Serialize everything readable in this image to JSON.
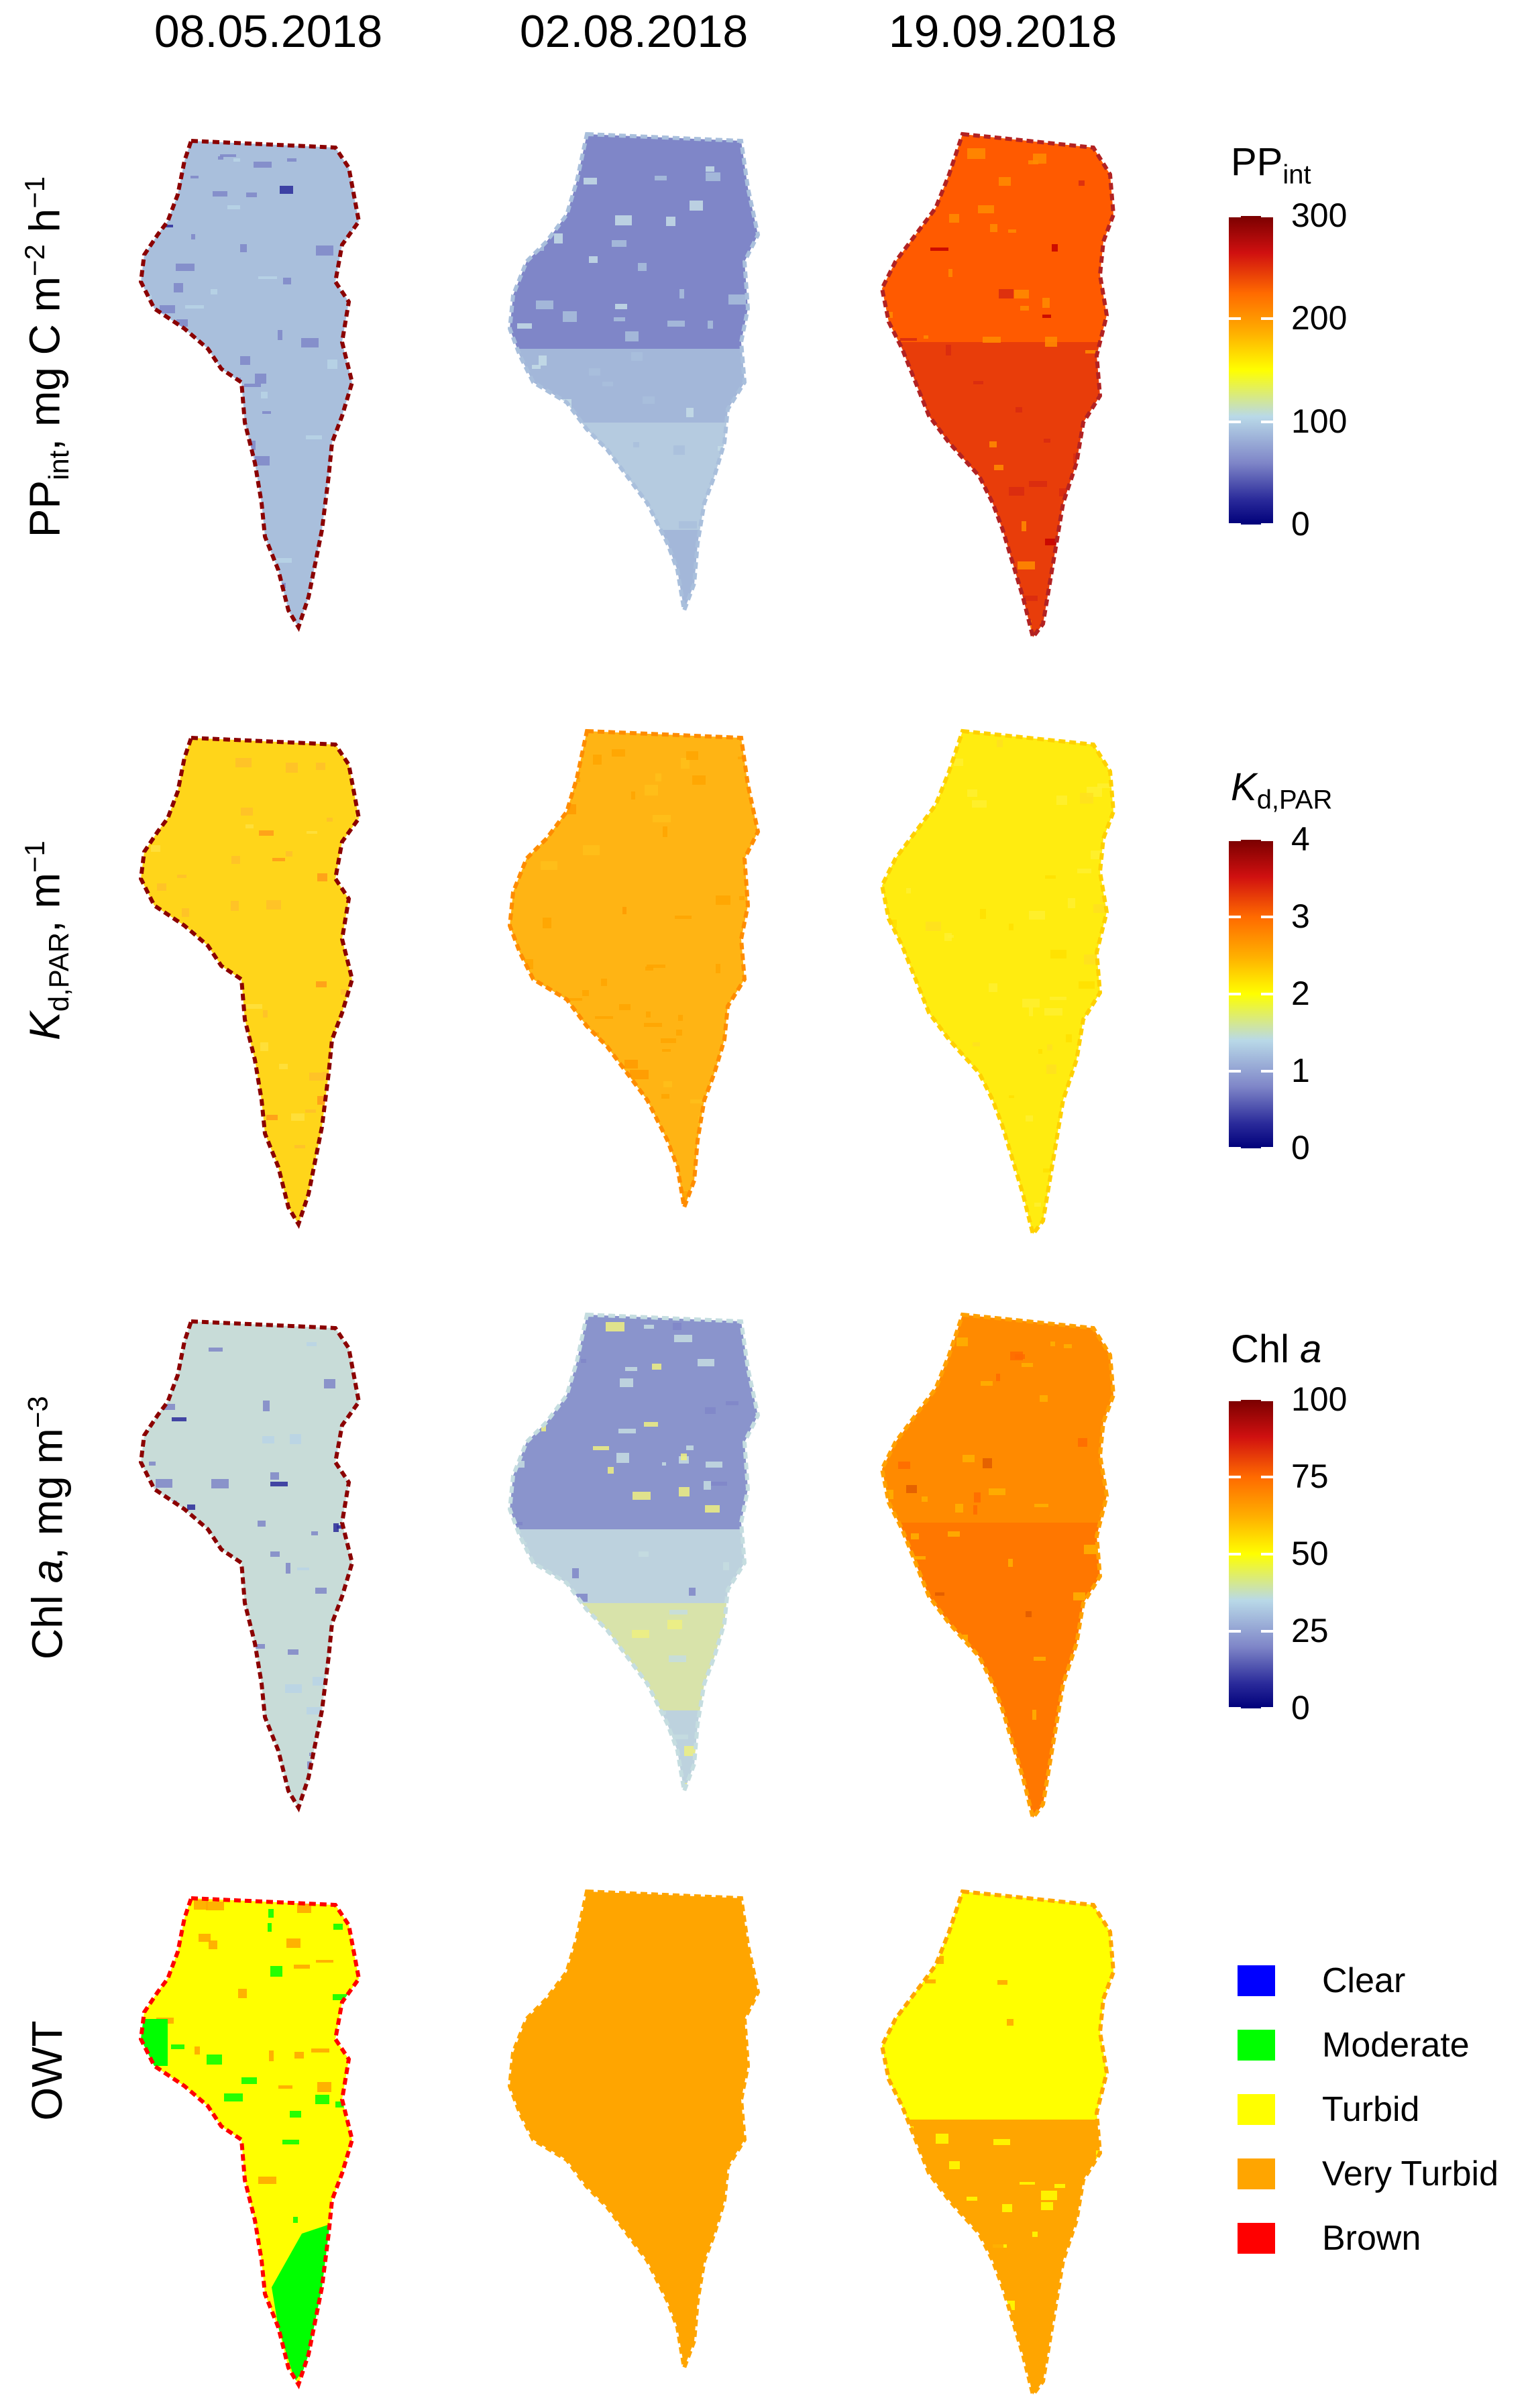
{
  "dates": [
    "08.05.2018",
    "02.08.2018",
    "19.09.2018"
  ],
  "rows": [
    {
      "id": "ppint",
      "label_main": "PP",
      "label_sub": "int",
      "label_rest": ", mg C m",
      "label_sup1": "−2",
      "label_mid": " h",
      "label_sup2": "−1",
      "colorbar": {
        "title_main": "PP",
        "title_sub": "int",
        "ticks": [
          "300",
          "200",
          "100",
          "0"
        ],
        "stops": [
          "#7a0000",
          "#d01010",
          "#ff6a00",
          "#ffb000",
          "#ffff00",
          "#b9d9e8",
          "#7f86c8",
          "#2a2a9a",
          "#00007a"
        ]
      },
      "maps": [
        {
          "base": "#a9bfdc",
          "patch": "#7f86c8",
          "patch2": "#b9d3e6",
          "edge": "#8b0000",
          "dark": "#2a2a9a"
        },
        {
          "base": "#7f86c8",
          "patch": "#a9bfdc",
          "patch2": "#c5dde6",
          "edge": "#a9bfdc",
          "dark": "#7f86c8"
        },
        {
          "base": "#ff5a00",
          "patch": "#ff8c00",
          "patch2": "#d82a10",
          "edge": "#b22222",
          "dark": "#c40000"
        }
      ]
    },
    {
      "id": "kd",
      "label_main": "K",
      "label_sub": "d,PAR",
      "label_rest": ", m",
      "label_sup1": "−1",
      "label_mid": "",
      "label_sup2": "",
      "colorbar": {
        "title_main": "K",
        "title_sub": "d,PAR",
        "ticks": [
          "4",
          "3",
          "2",
          "1",
          "0"
        ],
        "stops": [
          "#7a0000",
          "#d01010",
          "#ff6a00",
          "#ffb000",
          "#ffff00",
          "#b9d9e8",
          "#7f86c8",
          "#2a2a9a",
          "#00007a"
        ]
      },
      "maps": [
        {
          "base": "#ffd51a",
          "patch": "#ffc02a",
          "patch2": "#ffe040",
          "edge": "#8b0000",
          "dark": "#ff9a1a"
        },
        {
          "base": "#ffb414",
          "patch": "#ffa500",
          "patch2": "#ffc01a",
          "edge": "#ff8c00",
          "dark": "#ff9a00"
        },
        {
          "base": "#ffec10",
          "patch": "#fff030",
          "patch2": "#ffe000",
          "edge": "#ffd000",
          "dark": "#ffe020"
        }
      ]
    },
    {
      "id": "chla",
      "label_main": "Chl ",
      "label_sub": "",
      "label_rest": "a",
      "label_sup1": "",
      "label_mid": ", mg m",
      "label_sup2": "−3",
      "colorbar": {
        "title_main": "Chl ",
        "title_sub": "a",
        "ticks": [
          "100",
          "75",
          "50",
          "25",
          "0"
        ],
        "stops": [
          "#7a0000",
          "#d01010",
          "#ff6a00",
          "#ffb000",
          "#ffff00",
          "#b9d9e8",
          "#7f86c8",
          "#2a2a9a",
          "#00007a"
        ]
      },
      "maps": [
        {
          "base": "#c8dcd8",
          "patch": "#7f86c8",
          "patch2": "#b9d3e6",
          "edge": "#8b0000",
          "dark": "#2a2a9a"
        },
        {
          "base": "#8a94cc",
          "patch": "#c5dde0",
          "patch2": "#eef080",
          "edge": "#c5dde0",
          "dark": "#7f86c8"
        },
        {
          "base": "#ff8a00",
          "patch": "#ffb000",
          "patch2": "#ff6a00",
          "edge": "#ffa000",
          "dark": "#e05a00"
        }
      ]
    },
    {
      "id": "owt",
      "label_main": "OWT",
      "label_sub": "",
      "label_rest": "",
      "label_sup1": "",
      "label_mid": "",
      "label_sup2": "",
      "legend": [
        {
          "label": "Clear",
          "color": "#0000ff"
        },
        {
          "label": "Moderate",
          "color": "#00ff00"
        },
        {
          "label": "Turbid",
          "color": "#ffff00"
        },
        {
          "label": "Very Turbid",
          "color": "#ffa500"
        },
        {
          "label": "Brown",
          "color": "#ff0000"
        }
      ],
      "maps": [
        {
          "base": "#ffff00",
          "patch": "#ffa500",
          "patch2": "#00ff00",
          "edge": "#ff0000",
          "dark": "#00ff00"
        },
        {
          "base": "#ffa500",
          "patch": "#ffa500",
          "patch2": "#ffa500",
          "edge": "#ffa500",
          "dark": "#ffa500"
        },
        {
          "base": "#ffa500",
          "patch": "#ffff00",
          "patch2": "#ffa500",
          "edge": "#ffa500",
          "dark": "#ffff00"
        }
      ]
    }
  ]
}
